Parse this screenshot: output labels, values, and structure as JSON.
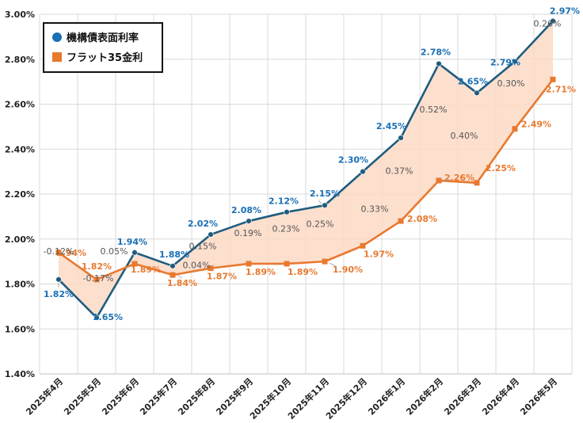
{
  "chart_data": {
    "type": "line",
    "categories": [
      "2025年4月",
      "2025年5月",
      "2025年6月",
      "2025年7月",
      "2025年8月",
      "2025年9月",
      "2025年10月",
      "2025年11月",
      "2025年12月",
      "2026年1月",
      "2026年2月",
      "2026年3月",
      "2026年4月",
      "2026年5月"
    ],
    "series": [
      {
        "name": "機構債表面利率",
        "values": [
          1.82,
          1.65,
          1.94,
          1.88,
          2.02,
          2.08,
          2.12,
          2.15,
          2.3,
          2.45,
          2.78,
          2.65,
          2.79,
          2.97
        ],
        "labels": [
          "1.82%",
          "1.65%",
          "1.94%",
          "1.88%",
          "2.02%",
          "2.08%",
          "2.12%",
          "2.15%",
          "2.30%",
          "2.45%",
          "2.78%",
          "2.65%",
          "2.79%",
          "2.97%"
        ],
        "color": "#1f5c7f",
        "label_color": "#1a6fb5",
        "marker": "circle"
      },
      {
        "name": "フラット35金利",
        "values": [
          1.94,
          1.82,
          1.89,
          1.84,
          1.87,
          1.89,
          1.89,
          1.9,
          1.97,
          2.08,
          2.26,
          2.25,
          2.49,
          2.71
        ],
        "labels": [
          "1.94%",
          "1.82%",
          "1.89%",
          "1.84%",
          "1.87%",
          "1.89%",
          "1.89%",
          "1.90%",
          "1.97%",
          "2.08%",
          "2.26%",
          "2.25%",
          "2.49%",
          "2.71%"
        ],
        "color": "#e8792f",
        "label_color": "#e8792f",
        "marker": "square"
      }
    ],
    "spread_labels": [
      "-0.12%",
      "-0.17%",
      "0.05%",
      "0.04%",
      "0.15%",
      "0.19%",
      "0.23%",
      "0.25%",
      "0.33%",
      "0.37%",
      "0.52%",
      "0.40%",
      "0.30%",
      "0.26%"
    ],
    "fill_color": "#fbd9c4",
    "y_ticks": [
      "1.40%",
      "1.60%",
      "1.80%",
      "2.00%",
      "2.20%",
      "2.40%",
      "2.60%",
      "2.80%",
      "3.00%"
    ],
    "ylim": [
      1.4,
      3.0
    ],
    "grid": true,
    "legend_position": "top-left"
  }
}
